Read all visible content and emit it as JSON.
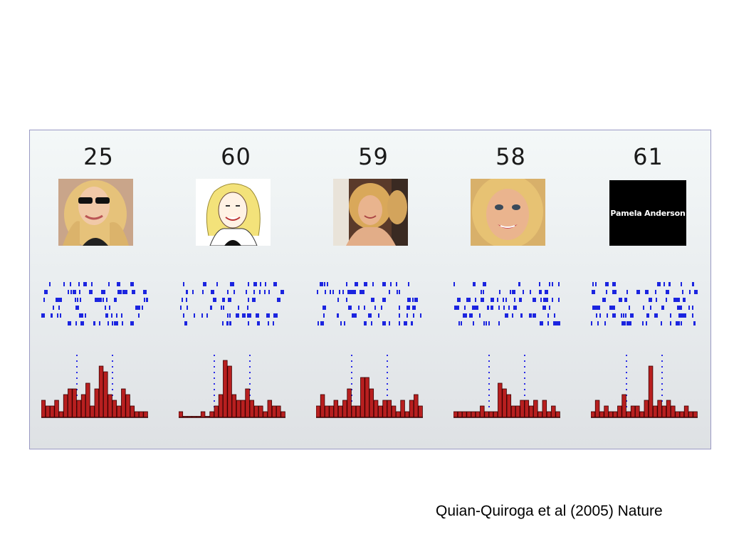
{
  "figure": {
    "stimuli": [
      {
        "response_count": "25",
        "picture": "pamela-anderson-photo-sunglasses",
        "raster_seed": 11,
        "hist": [
          3,
          2,
          2,
          3,
          1,
          4,
          5,
          5,
          3,
          4,
          6,
          2,
          5,
          9,
          8,
          4,
          3,
          2,
          5,
          4,
          2,
          1,
          1,
          1
        ]
      },
      {
        "response_count": "60",
        "picture": "pamela-anderson-drawing",
        "raster_seed": 23,
        "hist": [
          1,
          0,
          0,
          0,
          0,
          1,
          0,
          1,
          2,
          4,
          10,
          9,
          4,
          3,
          3,
          5,
          3,
          2,
          2,
          1,
          3,
          2,
          2,
          1
        ]
      },
      {
        "response_count": "59",
        "picture": "pamela-anderson-photo-event",
        "raster_seed": 37,
        "hist": [
          2,
          4,
          2,
          2,
          3,
          2,
          3,
          5,
          2,
          2,
          7,
          7,
          5,
          3,
          2,
          3,
          3,
          2,
          1,
          3,
          1,
          3,
          4,
          2
        ]
      },
      {
        "response_count": "58",
        "picture": "pamela-anderson-photo-portrait",
        "raster_seed": 41,
        "hist": [
          1,
          1,
          1,
          1,
          1,
          1,
          2,
          1,
          1,
          1,
          6,
          5,
          4,
          2,
          2,
          3,
          3,
          2,
          3,
          1,
          3,
          1,
          2,
          1
        ]
      },
      {
        "response_count": "61",
        "picture": "pamela-anderson-name-card",
        "name_card_text": "Pamela Anderson",
        "raster_seed": 59,
        "hist": [
          1,
          3,
          1,
          2,
          1,
          1,
          2,
          4,
          1,
          2,
          2,
          1,
          3,
          9,
          2,
          3,
          2,
          3,
          2,
          1,
          1,
          2,
          1,
          1
        ]
      }
    ],
    "colors": {
      "raster_ticks": "#1b24e0",
      "hist_bar": "#b81f1f",
      "hist_edge": "#3a0000",
      "onset_line": "#2a2ae6"
    }
  },
  "citation": "Quian-Quiroga et al (2005) Nature"
}
